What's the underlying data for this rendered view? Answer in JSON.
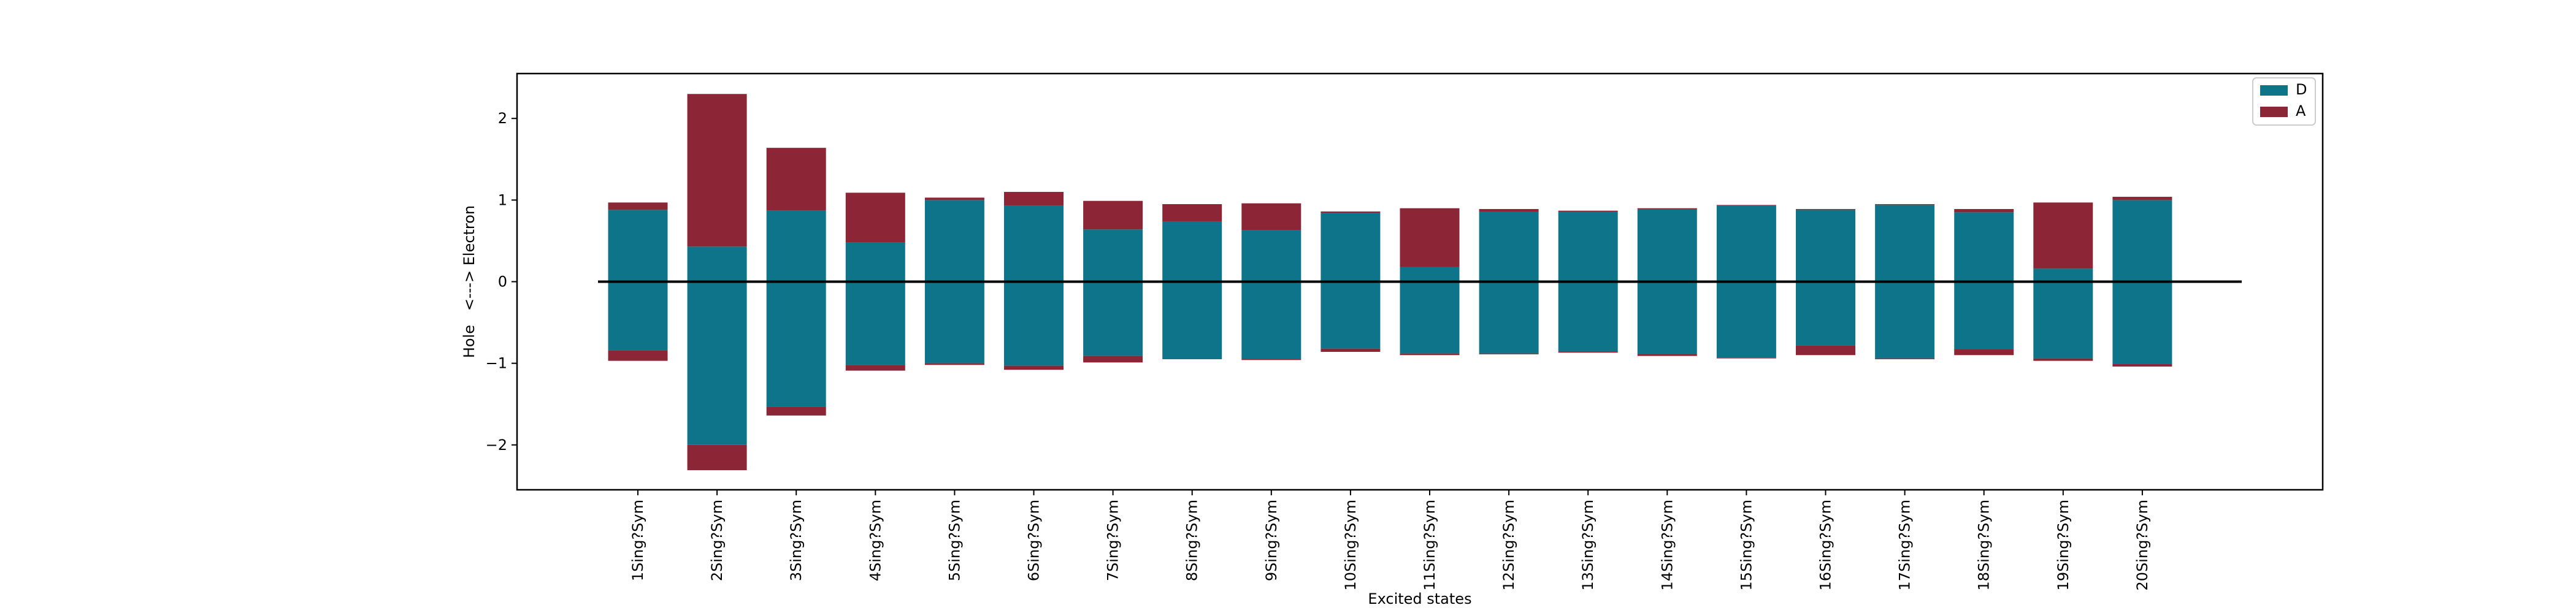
{
  "chart_data": {
    "type": "bar",
    "stacked": true,
    "title": "",
    "xlabel": "Excited states",
    "ylabel": "Hole   <---> Electron",
    "ylim": [
      -2.55,
      2.55
    ],
    "yticks": [
      2,
      1,
      0,
      -1,
      -2
    ],
    "ytick_labels": [
      "2",
      "1",
      "0",
      "−1",
      "−2"
    ],
    "categories": [
      "1Sing?Sym",
      "2Sing?Sym",
      "3Sing?Sym",
      "4Sing?Sym",
      "5Sing?Sym",
      "6Sing?Sym",
      "7Sing?Sym",
      "8Sing?Sym",
      "9Sing?Sym",
      "10Sing?Sym",
      "11Sing?Sym",
      "12Sing?Sym",
      "13Sing?Sym",
      "14Sing?Sym",
      "15Sing?Sym",
      "16Sing?Sym",
      "17Sing?Sym",
      "18Sing?Sym",
      "19Sing?Sym",
      "20Sing?Sym"
    ],
    "electron": {
      "D": [
        0.88,
        0.43,
        0.87,
        0.48,
        1.0,
        0.93,
        0.64,
        0.74,
        0.63,
        0.84,
        0.18,
        0.86,
        0.86,
        0.89,
        0.93,
        0.88,
        0.94,
        0.85,
        0.16,
        1.0
      ],
      "A": [
        0.09,
        1.87,
        0.77,
        0.61,
        0.03,
        0.17,
        0.35,
        0.21,
        0.33,
        0.02,
        0.72,
        0.03,
        0.01,
        0.01,
        0.01,
        0.01,
        0.01,
        0.04,
        0.81,
        0.04
      ]
    },
    "hole": {
      "D": [
        -0.84,
        -2.0,
        -1.53,
        -1.02,
        -1.0,
        -1.03,
        -0.91,
        -0.95,
        -0.95,
        -0.82,
        -0.88,
        -0.88,
        -0.86,
        -0.89,
        -0.93,
        -0.78,
        -0.94,
        -0.83,
        -0.94,
        -1.01
      ],
      "A": [
        -0.13,
        -0.31,
        -0.11,
        -0.07,
        -0.02,
        -0.05,
        -0.08,
        0.0,
        -0.01,
        -0.04,
        -0.02,
        -0.01,
        -0.01,
        -0.02,
        -0.01,
        -0.12,
        -0.01,
        -0.07,
        -0.03,
        -0.03
      ]
    },
    "series": [
      {
        "name": "D",
        "color": "#0e7489"
      },
      {
        "name": "A",
        "color": "#8c2535"
      }
    ],
    "legend": "top-right",
    "zero_line": true,
    "grid": false
  }
}
